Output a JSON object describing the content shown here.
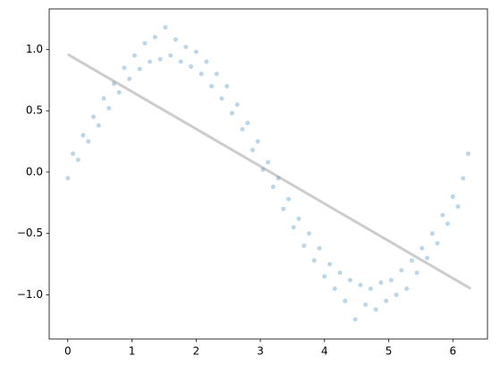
{
  "chart_data": {
    "type": "scatter",
    "xlim": [
      -0.29,
      6.54
    ],
    "ylim": [
      -1.36,
      1.33
    ],
    "xticks": [
      0,
      1,
      2,
      3,
      4,
      5,
      6
    ],
    "yticks": [
      {
        "value": -1,
        "label": "−1.0"
      },
      {
        "value": -0.5,
        "label": "−0.5"
      },
      {
        "value": 0,
        "label": "0.0"
      },
      {
        "value": 0.5,
        "label": "0.5"
      },
      {
        "value": 1,
        "label": "1.0"
      }
    ],
    "series": [
      {
        "type": "scatter",
        "color": "#1f77b4",
        "x": [
          0,
          0.08,
          0.16,
          0.24,
          0.32,
          0.4,
          0.48,
          0.56,
          0.64,
          0.72,
          0.8,
          0.88,
          0.96,
          1.04,
          1.12,
          1.2,
          1.28,
          1.36,
          1.44,
          1.52,
          1.6,
          1.68,
          1.76,
          1.84,
          1.92,
          2,
          2.08,
          2.16,
          2.24,
          2.32,
          2.4,
          2.48,
          2.56,
          2.64,
          2.72,
          2.8,
          2.88,
          2.96,
          3.04,
          3.12,
          3.2,
          3.28,
          3.36,
          3.44,
          3.52,
          3.6,
          3.68,
          3.76,
          3.84,
          3.92,
          4,
          4.08,
          4.16,
          4.24,
          4.32,
          4.4,
          4.48,
          4.56,
          4.64,
          4.72,
          4.8,
          4.88,
          4.96,
          5.04,
          5.12,
          5.2,
          5.28,
          5.36,
          5.44,
          5.52,
          5.6,
          5.68,
          5.76,
          5.84,
          5.92,
          6,
          6.08,
          6.16,
          6.24
        ],
        "values": [
          -0.05,
          0.15,
          0.1,
          0.3,
          0.25,
          0.45,
          0.38,
          0.6,
          0.52,
          0.72,
          0.65,
          0.85,
          0.76,
          0.95,
          0.84,
          1.05,
          0.9,
          1.1,
          0.92,
          1.18,
          0.95,
          1.08,
          0.9,
          1.02,
          0.86,
          0.98,
          0.8,
          0.9,
          0.7,
          0.8,
          0.6,
          0.7,
          0.48,
          0.55,
          0.35,
          0.4,
          0.18,
          0.25,
          0.02,
          0.08,
          -0.12,
          -0.05,
          -0.3,
          -0.22,
          -0.45,
          -0.38,
          -0.6,
          -0.5,
          -0.72,
          -0.62,
          -0.85,
          -0.75,
          -0.95,
          -0.82,
          -1.05,
          -0.88,
          -1.2,
          -0.92,
          -1.08,
          -0.95,
          -1.12,
          -0.9,
          -1.05,
          -0.88,
          -1,
          -0.8,
          -0.95,
          -0.72,
          -0.82,
          -0.62,
          -0.7,
          -0.5,
          -0.58,
          -0.35,
          -0.42,
          -0.2,
          -0.28,
          -0.05,
          0.15
        ]
      },
      {
        "type": "line",
        "color": "#808080",
        "x": [
          0,
          6.28
        ],
        "values": [
          0.96,
          -0.95
        ]
      }
    ]
  }
}
